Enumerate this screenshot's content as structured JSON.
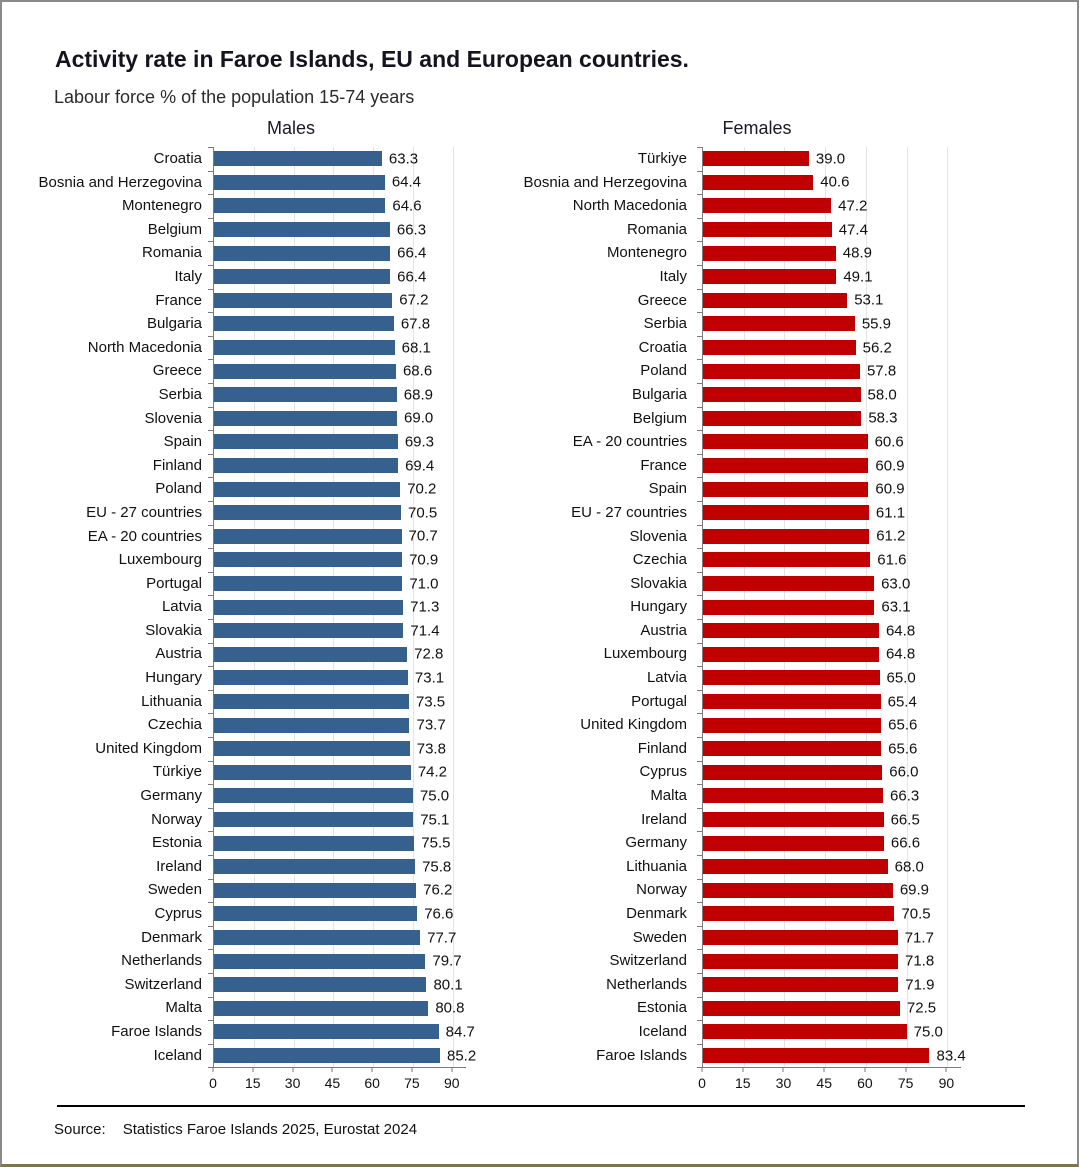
{
  "header": {
    "title": "Activity rate in Faroe Islands, EU and European countries.",
    "subtitle": "Labour force % of the population 15-74 years"
  },
  "source": {
    "label": "Source:",
    "text": "Statistics Faroe Islands 2025, Eurostat 2024"
  },
  "colors": {
    "male_bar": "#36618E",
    "female_bar": "#C00000",
    "axis": "#7a7a7a",
    "gridline": "#e4e4e4",
    "frame_border": "#8a8a8a",
    "frame_bottom_border": "#7c764f"
  },
  "chart_data": [
    {
      "type": "bar",
      "orientation": "horizontal",
      "title": "Males",
      "color": "#36618E",
      "xlabel": "",
      "ylabel": "",
      "xlim": [
        0,
        95
      ],
      "xticks": [
        0,
        15,
        30,
        45,
        60,
        75,
        90
      ],
      "grid": true,
      "categories": [
        "Croatia",
        "Bosnia and Herzegovina",
        "Montenegro",
        "Belgium",
        "Romania",
        "Italy",
        "France",
        "Bulgaria",
        "North Macedonia",
        "Greece",
        "Serbia",
        "Slovenia",
        "Spain",
        "Finland",
        "Poland",
        "EU - 27 countries",
        "EA - 20 countries",
        "Luxembourg",
        "Portugal",
        "Latvia",
        "Slovakia",
        "Austria",
        "Hungary",
        "Lithuania",
        "Czechia",
        "United Kingdom",
        "Türkiye",
        "Germany",
        "Norway",
        "Estonia",
        "Ireland",
        "Sweden",
        "Cyprus",
        "Denmark",
        "Netherlands",
        "Switzerland",
        "Malta",
        "Faroe Islands",
        "Iceland"
      ],
      "values": [
        63.3,
        64.4,
        64.6,
        66.3,
        66.4,
        66.4,
        67.2,
        67.8,
        68.1,
        68.6,
        68.9,
        69.0,
        69.3,
        69.4,
        70.2,
        70.5,
        70.7,
        70.9,
        71.0,
        71.3,
        71.4,
        72.8,
        73.1,
        73.5,
        73.7,
        73.8,
        74.2,
        75.0,
        75.1,
        75.5,
        75.8,
        76.2,
        76.6,
        77.7,
        79.7,
        80.1,
        80.8,
        84.7,
        85.2
      ]
    },
    {
      "type": "bar",
      "orientation": "horizontal",
      "title": "Females",
      "color": "#C00000",
      "xlabel": "",
      "ylabel": "",
      "xlim": [
        0,
        95
      ],
      "xticks": [
        0,
        15,
        30,
        45,
        60,
        75,
        90
      ],
      "grid": true,
      "categories": [
        "Türkiye",
        "Bosnia and Herzegovina",
        "North Macedonia",
        "Romania",
        "Montenegro",
        "Italy",
        "Greece",
        "Serbia",
        "Croatia",
        "Poland",
        "Bulgaria",
        "Belgium",
        "EA - 20 countries",
        "France",
        "Spain",
        "EU - 27 countries",
        "Slovenia",
        "Czechia",
        "Slovakia",
        "Hungary",
        "Austria",
        "Luxembourg",
        "Latvia",
        "Portugal",
        "United Kingdom",
        "Finland",
        "Cyprus",
        "Malta",
        "Ireland",
        "Germany",
        "Lithuania",
        "Norway",
        "Denmark",
        "Sweden",
        "Switzerland",
        "Netherlands",
        "Estonia",
        "Iceland",
        "Faroe Islands"
      ],
      "values": [
        39.0,
        40.6,
        47.2,
        47.4,
        48.9,
        49.1,
        53.1,
        55.9,
        56.2,
        57.8,
        58.0,
        58.3,
        60.6,
        60.9,
        60.9,
        61.1,
        61.2,
        61.6,
        63.0,
        63.1,
        64.8,
        64.8,
        65.0,
        65.4,
        65.6,
        65.6,
        66.0,
        66.3,
        66.5,
        66.6,
        68.0,
        69.9,
        70.5,
        71.7,
        71.8,
        71.9,
        72.5,
        75.0,
        83.4
      ]
    }
  ]
}
